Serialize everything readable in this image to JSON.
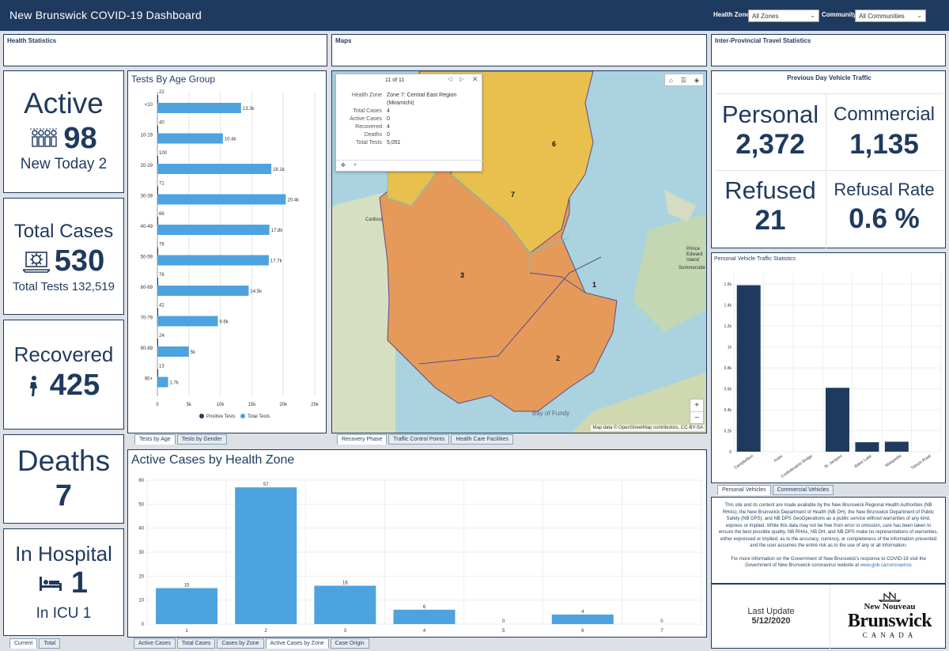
{
  "header": {
    "title": "New Brunswick COVID-19 Dashboard",
    "health_zone_label": "Health Zone:",
    "health_zone_value": "All Zones",
    "community_label": "Community:",
    "community_value": "All Communities"
  },
  "sections": {
    "health": "Health Statistics",
    "maps": "Maps",
    "travel": "Inter-Provincial Travel Statistics"
  },
  "active": {
    "label": "Active",
    "value": "98",
    "new_today": "New Today 2"
  },
  "total_cases": {
    "label": "Total Cases",
    "value": "530",
    "tests": "Total Tests 132,519"
  },
  "recovered": {
    "label": "Recovered",
    "value": "425"
  },
  "deaths": {
    "label": "Deaths",
    "value": "7"
  },
  "hospital": {
    "label": "In Hospital",
    "value": "1",
    "icu": "In ICU 1"
  },
  "left_tabs": [
    "Current",
    "Total"
  ],
  "age_chart_tabs": [
    "Tests by Age",
    "Tests by Gender"
  ],
  "map_tabs": [
    "Recovery Phase",
    "Traffic Control Points",
    "Health Care Facilities"
  ],
  "zone_chart_tabs": [
    "Active Cases",
    "Total Cases",
    "Cases by Zone",
    "Active Cases by Zone",
    "Case Origin"
  ],
  "traffic_tabs": [
    "Personal Vehicles",
    "Commercial Vehicles"
  ],
  "popup": {
    "counter": "11 of 11",
    "rows": [
      [
        "Health Zone",
        "Zone 7: Central East Region (Miramichi)"
      ],
      [
        "Total Cases",
        "4"
      ],
      [
        "Active Cases",
        "0"
      ],
      [
        "Recovered",
        "4"
      ],
      [
        "Deaths",
        "0"
      ],
      [
        "Total Tests",
        "5,051"
      ]
    ]
  },
  "map": {
    "attribution": "Map data © OpenStreetMap contributors, CC-BY-SA",
    "zone_labels": [
      "6",
      "7",
      "3",
      "1",
      "2"
    ],
    "places": [
      "Prince Edward Island",
      "Summerside",
      "Caribou",
      "Bay of Fundy"
    ],
    "zoom_in": "+",
    "zoom_out": "−"
  },
  "traffic": {
    "title": "Previous Day Vehicle Traffic",
    "personal_label": "Personal",
    "personal_value": "2,372",
    "commercial_label": "Commercial",
    "commercial_value": "1,135",
    "refused_label": "Refused",
    "refused_value": "21",
    "rate_label": "Refusal Rate",
    "rate_value": "0.6 %"
  },
  "disclaimer": {
    "p1": "This site and its content are made available by the New Brunswick Regional Health Authorities (NB RHAs), the New Brunswick Department of Health (NB DH), the New Brunswick Department of Public Safety (NB DPS), and NB DPS GeoOperations as a public service without warranties of any kind, express or implied. While this data may not be free from error or omission, care has been taken to ensure the best possible quality. NB RHAs, NB DH, and NB DPS make no representations of warranties, either expressed or implied, as to the accuracy, currency, or completeness of the information presented and the user assumes the entire risk as to the use of any or all information.",
    "p2a": "For more information on the Government of New Brunswick's response to COVID-19 visit the Government of New Brunswick coronavirus website at ",
    "p2link": "www.gnb.ca/coronavirus"
  },
  "update": {
    "label": "Last Update",
    "date": "5/12/2020"
  },
  "logo": {
    "line1": "New",
    "line1b": "Nouveau",
    "line2": "Brunswick",
    "line3": "CANADA"
  },
  "colors": {
    "navy": "#1f3a5f",
    "bar": "#4ca3e0",
    "orange": "#e79a5a",
    "yellow": "#e9c04e"
  },
  "chart_data": [
    {
      "type": "bar",
      "title": "Tests By Age Group",
      "orientation": "horizontal",
      "categories": [
        "<10",
        "10-19",
        "20-29",
        "30-39",
        "40-49",
        "50-59",
        "60-69",
        "70-79",
        "80-89",
        "90+"
      ],
      "series": [
        {
          "name": "Positive Tests",
          "values": [
            22,
            40,
            100,
            71,
            66,
            76,
            76,
            42,
            24,
            13
          ]
        },
        {
          "name": "Total Tests",
          "values": [
            13300,
            10400,
            18100,
            20400,
            17800,
            17700,
            14500,
            9600,
            5000,
            1700
          ]
        }
      ],
      "total_labels": [
        "13.3k",
        "10.4k",
        "18.1k",
        "20.4k",
        "17.8k",
        "17.7k",
        "14.5k",
        "9.6k",
        "5k",
        "1.7k"
      ],
      "xticks": [
        "0",
        "5k",
        "10k",
        "15k",
        "20k",
        "25k"
      ],
      "xlim": [
        0,
        25000
      ],
      "legend": "bottom"
    },
    {
      "type": "bar",
      "title": "Active Cases by Health Zone",
      "categories": [
        "1",
        "2",
        "3",
        "4",
        "5",
        "6",
        "7"
      ],
      "values": [
        15,
        57,
        16,
        6,
        0,
        4,
        0
      ],
      "yticks": [
        "0",
        "10",
        "20",
        "30",
        "40",
        "50",
        "60"
      ],
      "ylim": [
        0,
        60
      ]
    },
    {
      "type": "bar",
      "title": "Personal Vehicle Traffic Statistics",
      "categories": [
        "Campbellton",
        "Aulac",
        "Confederation Bridge",
        "St. Jacques",
        "Baker Lake",
        "Matapedia",
        "Tidnish Road"
      ],
      "values": [
        1590,
        0,
        0,
        610,
        90,
        95,
        0
      ],
      "yticks": [
        "0",
        "0.2k",
        "0.4k",
        "0.6k",
        "0.8k",
        "1k",
        "1.2k",
        "1.4k",
        "1.6k"
      ],
      "ylim": [
        0,
        1700
      ]
    }
  ]
}
